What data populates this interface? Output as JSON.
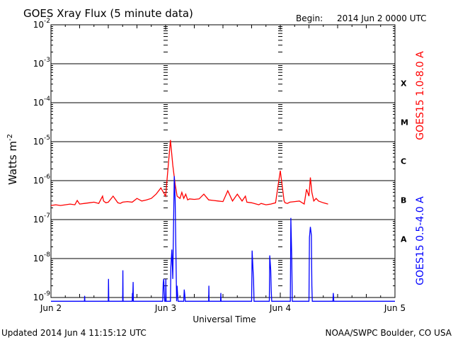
{
  "header": {
    "title": "GOES Xray Flux (5 minute data)",
    "begin_label": "Begin:",
    "begin_value": "2014 Jun 2 0000 UTC"
  },
  "footer": {
    "updated": "Updated 2014 Jun  4 11:15:12 UTC",
    "credit": "NOAA/SWPC Boulder, CO USA"
  },
  "chart_data": {
    "type": "line",
    "title": "GOES Xray Flux (5 minute data)",
    "xlabel": "Universal Time",
    "ylabel_main": "Watts m",
    "ylabel_sup": "-2",
    "y_scale": "log",
    "ylim": [
      1e-09,
      0.01
    ],
    "xlim": [
      0,
      72
    ],
    "x_units": "hours since 2014 Jun 2 0000 UTC",
    "x_ticks": [
      {
        "x": 0,
        "label": "Jun 2"
      },
      {
        "x": 24,
        "label": "Jun 3"
      },
      {
        "x": 48,
        "label": "Jun 4"
      },
      {
        "x": 72,
        "label": "Jun 5"
      }
    ],
    "y_ticks": [
      {
        "exp": -2,
        "label": "10",
        "sup": "-2"
      },
      {
        "exp": -3,
        "label": "10",
        "sup": "-3"
      },
      {
        "exp": -4,
        "label": "10",
        "sup": "-4"
      },
      {
        "exp": -5,
        "label": "10",
        "sup": "-5"
      },
      {
        "exp": -6,
        "label": "10",
        "sup": "-6"
      },
      {
        "exp": -7,
        "label": "10",
        "sup": "-7"
      },
      {
        "exp": -8,
        "label": "10",
        "sup": "-8"
      },
      {
        "exp": -9,
        "label": "10",
        "sup": "-9"
      }
    ],
    "flare_classes": [
      {
        "label": "X",
        "exp": -3.5
      },
      {
        "label": "M",
        "exp": -4.5
      },
      {
        "label": "C",
        "exp": -5.5
      },
      {
        "label": "B",
        "exp": -6.5
      },
      {
        "label": "A",
        "exp": -7.5
      }
    ],
    "grid": true,
    "series": [
      {
        "name": "GOES15 1.0-8.0 A",
        "color": "#ff0000",
        "x": [
          0,
          1,
          2,
          3,
          4,
          5,
          5.5,
          6,
          7,
          8,
          9,
          10,
          10.8,
          11,
          11.5,
          12,
          13,
          14,
          14.5,
          15,
          16,
          17,
          18,
          19,
          20,
          21,
          22,
          23,
          24,
          25,
          25.5,
          26,
          26.4,
          27,
          27.4,
          27.8,
          28.2,
          28.6,
          29,
          30,
          31,
          32,
          33,
          34,
          35,
          36,
          37,
          38,
          39,
          40,
          40.7,
          41,
          42,
          43,
          43.5,
          44,
          45,
          46,
          47,
          48,
          48.8,
          49,
          49.5,
          50,
          51,
          52,
          53,
          53.5,
          54,
          54.3,
          54.6,
          55,
          55.5,
          56,
          57,
          58
        ],
        "values": [
          2.3e-07,
          2.4e-07,
          2.3e-07,
          2.4e-07,
          2.5e-07,
          2.4e-07,
          3.1e-07,
          2.5e-07,
          2.6e-07,
          2.7e-07,
          2.8e-07,
          2.6e-07,
          4e-07,
          3e-07,
          2.7e-07,
          2.8e-07,
          4e-07,
          2.7e-07,
          2.6e-07,
          2.8e-07,
          2.9e-07,
          2.8e-07,
          3.5e-07,
          3e-07,
          3.2e-07,
          3.5e-07,
          4.5e-07,
          6.5e-07,
          4e-07,
          1.1e-05,
          2.5e-06,
          8e-07,
          4e-07,
          3.5e-07,
          5e-07,
          3.5e-07,
          4.5e-07,
          3.2e-07,
          3.4e-07,
          3.3e-07,
          3.4e-07,
          4.5e-07,
          3.2e-07,
          3.1e-07,
          3e-07,
          2.9e-07,
          5.5e-07,
          3e-07,
          4.5e-07,
          3e-07,
          4e-07,
          2.8e-07,
          2.7e-07,
          2.5e-07,
          2.4e-07,
          2.6e-07,
          2.4e-07,
          2.5e-07,
          2.7e-07,
          1.8e-06,
          3e-07,
          2.7e-07,
          2.6e-07,
          2.8e-07,
          2.9e-07,
          3e-07,
          2.5e-07,
          6e-07,
          4e-07,
          1.2e-06,
          5e-07,
          3e-07,
          3.5e-07,
          3e-07,
          2.7e-07,
          2.5e-07
        ]
      },
      {
        "name": "GOES15 0.5-4.0 A",
        "color": "#0000ff",
        "x": [
          0,
          7,
          7.05,
          7.1,
          12,
          12.05,
          12.1,
          15,
          15.05,
          15.1,
          17,
          17.05,
          17.1,
          17.2,
          17.25,
          23.4,
          23.5,
          23.6,
          23.7,
          23.8,
          24.0,
          24.05,
          24.1,
          25,
          25.1,
          25.3,
          25.5,
          25.8,
          26.0,
          26.3,
          26.4,
          26.5,
          26.6,
          27.8,
          27.9,
          28.0,
          28.1,
          33,
          33.05,
          33.1,
          35.5,
          35.55,
          35.6,
          42.0,
          42.1,
          42.3,
          42.4,
          42.5,
          45.7,
          45.8,
          46.0,
          46.1,
          46.2,
          50.1,
          50.2,
          50.4,
          50.5,
          54.0,
          54.1,
          54.3,
          54.5,
          54.6,
          54.7,
          59,
          59.1,
          59.2,
          72
        ],
        "values": [
          8e-10,
          8e-10,
          1.1e-09,
          8e-10,
          8e-10,
          3e-09,
          8e-10,
          8e-10,
          5e-09,
          8e-10,
          8e-10,
          1.3e-09,
          8e-10,
          2.5e-09,
          8e-10,
          8e-10,
          2.3e-09,
          3e-09,
          1.5e-09,
          8e-10,
          8e-10,
          3e-09,
          8e-10,
          8e-10,
          6e-09,
          1.7e-08,
          3e-09,
          1.3e-06,
          3e-07,
          8e-10,
          2e-09,
          1.2e-09,
          8e-10,
          8e-10,
          1.6e-09,
          1.2e-09,
          8e-10,
          8e-10,
          2e-09,
          8e-10,
          8e-10,
          1.3e-09,
          8e-10,
          8e-10,
          1.6e-08,
          5e-09,
          3e-09,
          8e-10,
          8e-10,
          1.2e-08,
          5e-09,
          1.5e-09,
          8e-10,
          8e-10,
          1.1e-07,
          1e-08,
          8e-10,
          8e-10,
          3.5e-08,
          6.5e-08,
          4e-08,
          2e-09,
          8e-10,
          8e-10,
          1.3e-09,
          8e-10,
          8e-10
        ]
      }
    ]
  }
}
